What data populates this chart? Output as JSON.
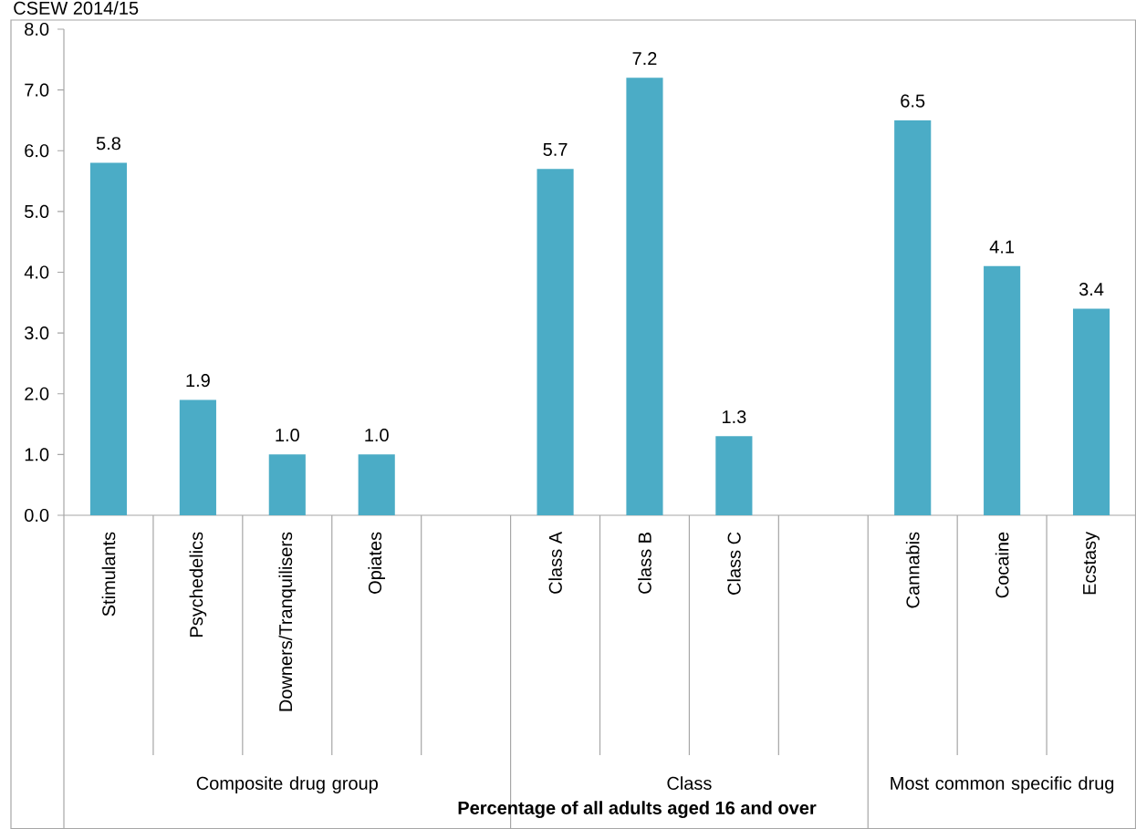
{
  "chart_data": {
    "type": "bar",
    "title": "CSEW 2014/15",
    "xlabel": "Percentage of all adults aged 16 and over",
    "categories": [
      "Stimulants",
      "Psychedelics",
      "Downers/Tranquilisers",
      "Opiates",
      null,
      "Class A",
      "Class B",
      "Class C",
      null,
      "Cannabis",
      "Cocaine",
      "Ecstasy"
    ],
    "values": [
      5.8,
      1.9,
      1.0,
      1.0,
      null,
      5.7,
      7.2,
      1.3,
      null,
      6.5,
      4.1,
      3.4
    ],
    "value_labels": [
      "5.8",
      "1.9",
      "1.0",
      "1.0",
      null,
      "5.7",
      "7.2",
      "1.3",
      null,
      "6.5",
      "4.1",
      "3.4"
    ],
    "color": "#4bacc6",
    "ylim": [
      0,
      8
    ],
    "yticks": [
      {
        "value": 0,
        "label": "0.0"
      },
      {
        "value": 1,
        "label": "1.0"
      },
      {
        "value": 2,
        "label": "2.0"
      },
      {
        "value": 3,
        "label": "3.0"
      },
      {
        "value": 4,
        "label": "4.0"
      },
      {
        "value": 5,
        "label": "5.0"
      },
      {
        "value": 6,
        "label": "6.0"
      },
      {
        "value": 7,
        "label": "7.0"
      },
      {
        "value": 8,
        "label": "8.0"
      }
    ],
    "annotations": [
      "Composite drug group",
      "Class",
      "Most common specific drug"
    ]
  }
}
